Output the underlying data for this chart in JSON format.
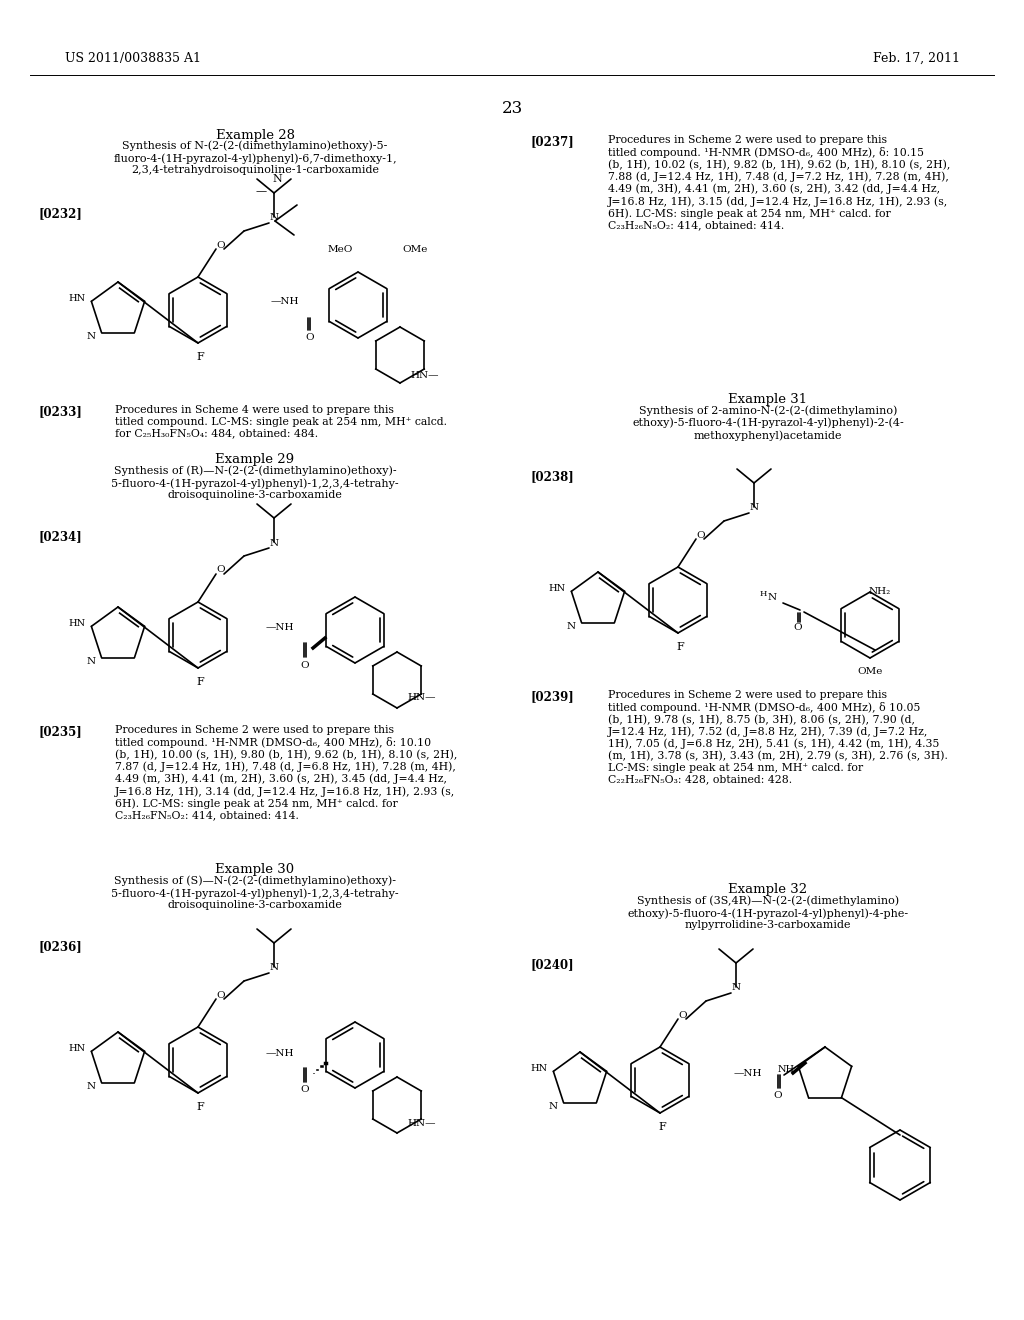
{
  "header_left": "US 2011/0038835 A1",
  "header_right": "Feb. 17, 2011",
  "page_number": "23",
  "bg_color": "#ffffff",
  "text_color": "#000000",
  "left_column": {
    "example28_title": "Example 28",
    "example28_sub": "Synthesis of N-(2-(2-(dimethylamino)ethoxy)-5-\nfluoro-4-(1H-pyrazol-4-yl)phenyl)-6,7-dimethoxy-1,\n2,3,4-tetrahydroisoquinoline-1-carboxamide",
    "tag232": "[0232]",
    "tag233": "[0233]",
    "text233": "Procedures in Scheme 4 were used to prepare this\ntitled compound. LC-MS: single peak at 254 nm, MH⁺ calcd.\nfor C₂₅H₃₀FN₅O₄: 484, obtained: 484.",
    "example29_title": "Example 29",
    "example29_sub": "Synthesis of (R)—N-(2-(2-(dimethylamino)ethoxy)-\n5-fluoro-4-(1H-pyrazol-4-yl)phenyl)-1,2,3,4-tetrahy-\ndroisoquinoline-3-carboxamide",
    "tag234": "[0234]",
    "tag235": "[0235]",
    "text235": "Procedures in Scheme 2 were used to prepare this\ntitled compound. ¹H-NMR (DMSO-d₆, 400 MHz), δ: 10.10\n(b, 1H), 10.00 (s, 1H), 9.80 (b, 1H), 9.62 (b, 1H), 8.10 (s, 2H),\n7.87 (d, J=12.4 Hz, 1H), 7.48 (d, J=6.8 Hz, 1H), 7.28 (m, 4H),\n4.49 (m, 3H), 4.41 (m, 2H), 3.60 (s, 2H), 3.45 (dd, J=4.4 Hz,\nJ=16.8 Hz, 1H), 3.14 (dd, J=12.4 Hz, J=16.8 Hz, 1H), 2.93 (s,\n6H). LC-MS: single peak at 254 nm, MH⁺ calcd. for\nC₂₃H₂₆FN₅O₂: 414, obtained: 414.",
    "example30_title": "Example 30",
    "example30_sub": "Synthesis of (S)—N-(2-(2-(dimethylamino)ethoxy)-\n5-fluoro-4-(1H-pyrazol-4-yl)phenyl)-1,2,3,4-tetrahy-\ndroisoquinoline-3-carboxamide",
    "tag236": "[0236]"
  },
  "right_column": {
    "tag237": "[0237]",
    "text237": "Procedures in Scheme 2 were used to prepare this\ntitled compound. ¹H-NMR (DMSO-d₆, 400 MHz), δ: 10.15\n(b, 1H), 10.02 (s, 1H), 9.82 (b, 1H), 9.62 (b, 1H), 8.10 (s, 2H),\n7.88 (d, J=12.4 Hz, 1H), 7.48 (d, J=7.2 Hz, 1H), 7.28 (m, 4H),\n4.49 (m, 3H), 4.41 (m, 2H), 3.60 (s, 2H), 3.42 (dd, J=4.4 Hz,\nJ=16.8 Hz, 1H), 3.15 (dd, J=12.4 Hz, J=16.8 Hz, 1H), 2.93 (s,\n6H). LC-MS: single peak at 254 nm, MH⁺ calcd. for\nC₂₃H₂₆N₅O₂: 414, obtained: 414.",
    "example31_title": "Example 31",
    "example31_sub": "Synthesis of 2-amino-N-(2-(2-(dimethylamino)\nethoxy)-5-fluoro-4-(1H-pyrazol-4-yl)phenyl)-2-(4-\nmethoxyphenyl)acetamide",
    "tag238": "[0238]",
    "tag239": "[0239]",
    "text239": "Procedures in Scheme 2 were used to prepare this\ntitled compound. ¹H-NMR (DMSO-d₆, 400 MHz), δ 10.05\n(b, 1H), 9.78 (s, 1H), 8.75 (b, 3H), 8.06 (s, 2H), 7.90 (d,\nJ=12.4 Hz, 1H), 7.52 (d, J=8.8 Hz, 2H), 7.39 (d, J=7.2 Hz,\n1H), 7.05 (d, J=6.8 Hz, 2H), 5.41 (s, 1H), 4.42 (m, 1H), 4.35\n(m, 1H), 3.78 (s, 3H), 3.43 (m, 2H), 2.79 (s, 3H), 2.76 (s, 3H).\nLC-MS: single peak at 254 nm, MH⁺ calcd. for\nC₂₂H₂₆FN₅O₃: 428, obtained: 428.",
    "example32_title": "Example 32",
    "example32_sub": "Synthesis of (3S,4R)—N-(2-(2-(dimethylamino)\nethoxy)-5-fluoro-4-(1H-pyrazol-4-yl)phenyl)-4-phe-\nnylpyrrolidine-3-carboxamide",
    "tag240": "[0240]"
  }
}
